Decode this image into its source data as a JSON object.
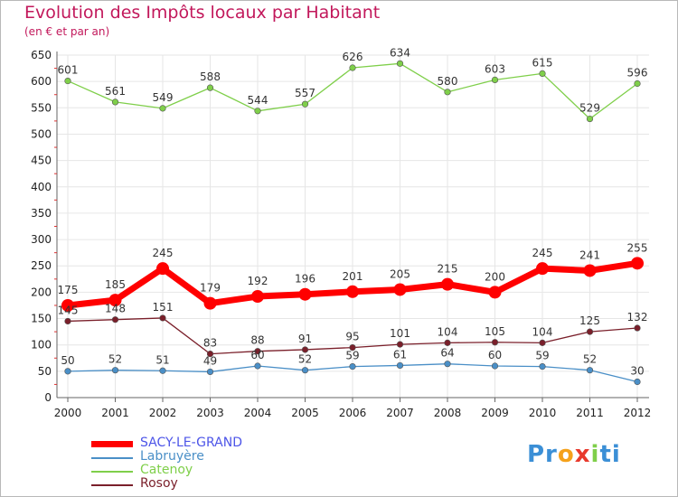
{
  "title": "Evolution des Impôts locaux par Habitant",
  "subtitle": "(en € et par an)",
  "logo": {
    "parts": [
      "Pr",
      "o",
      "x",
      "i",
      "ti"
    ]
  },
  "chart_data": {
    "type": "line",
    "title": "Evolution des Impôts locaux par Habitant",
    "subtitle": "(en € et par an)",
    "xlabel": "",
    "ylabel": "",
    "x": [
      "2000",
      "2001",
      "2002",
      "2003",
      "2004",
      "2005",
      "2006",
      "2007",
      "2008",
      "2009",
      "2010",
      "2011",
      "2012"
    ],
    "ylim": [
      0,
      650
    ],
    "yticks": [
      0,
      50,
      100,
      150,
      200,
      250,
      300,
      350,
      400,
      450,
      500,
      550,
      600,
      650
    ],
    "grid": true,
    "legend_position": "bottom-left",
    "series": [
      {
        "name": "SACY-LE-GRAND",
        "color": "#ff0000",
        "emphasis": true,
        "values": [
          175,
          185,
          245,
          179,
          192,
          196,
          201,
          205,
          215,
          200,
          245,
          241,
          255
        ]
      },
      {
        "name": "Labruyère",
        "color": "#4a8fc7",
        "emphasis": false,
        "values": [
          50,
          52,
          51,
          49,
          60,
          52,
          59,
          61,
          64,
          60,
          59,
          52,
          30
        ]
      },
      {
        "name": "Catenoy",
        "color": "#7fcf4a",
        "emphasis": false,
        "values": [
          601,
          561,
          549,
          588,
          544,
          557,
          626,
          634,
          580,
          603,
          615,
          529,
          596
        ]
      },
      {
        "name": "Rosoy",
        "color": "#7a1f2a",
        "emphasis": false,
        "values": [
          145,
          148,
          151,
          83,
          88,
          91,
          95,
          101,
          104,
          105,
          104,
          125,
          132
        ]
      }
    ]
  }
}
